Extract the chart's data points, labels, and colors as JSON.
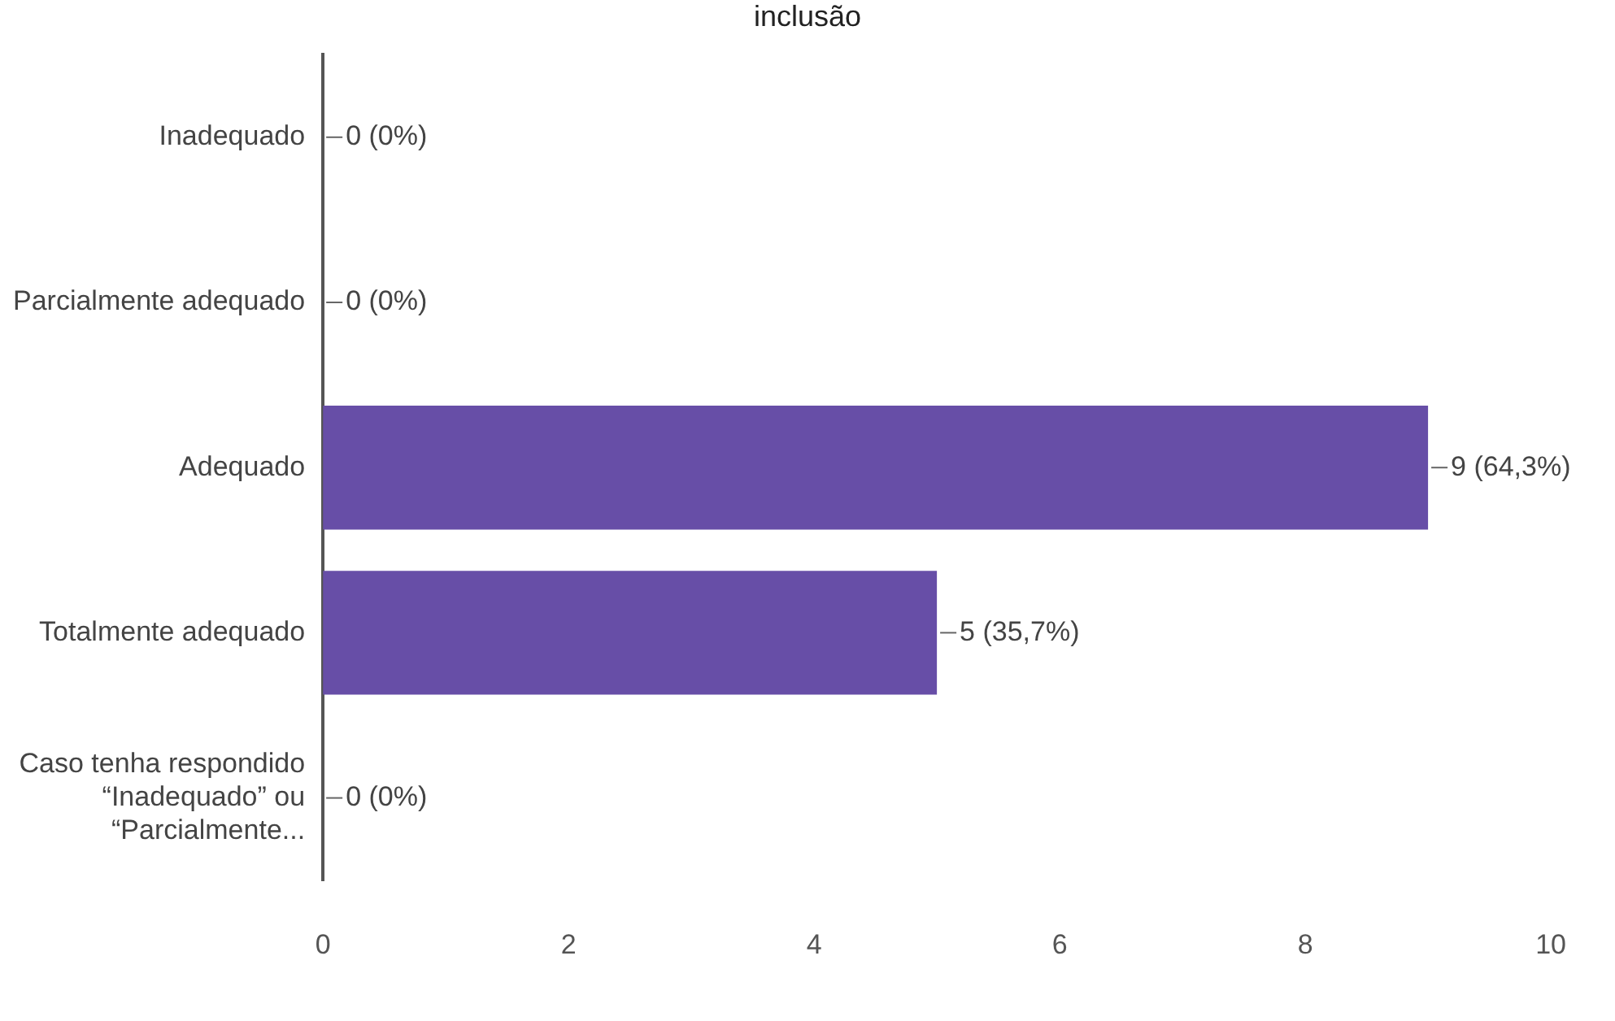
{
  "chart_data": {
    "type": "bar",
    "orientation": "horizontal",
    "title": "inclusão",
    "categories": [
      "Inadequado",
      "Parcialmente adequado",
      "Adequado",
      "Totalmente adequado",
      "Caso tenha respondido “Inadequado” ou “Parcialmente..."
    ],
    "values": [
      0,
      0,
      9,
      5,
      0
    ],
    "value_labels": [
      "0 (0%)",
      "0 (0%)",
      "9 (64,3%)",
      "5 (35,7%)",
      "0 (0%)"
    ],
    "color": "#674ea7",
    "xlim": [
      0,
      10
    ],
    "xticks": [
      0,
      2,
      4,
      6,
      8,
      10
    ],
    "grid": false,
    "legend": false
  }
}
